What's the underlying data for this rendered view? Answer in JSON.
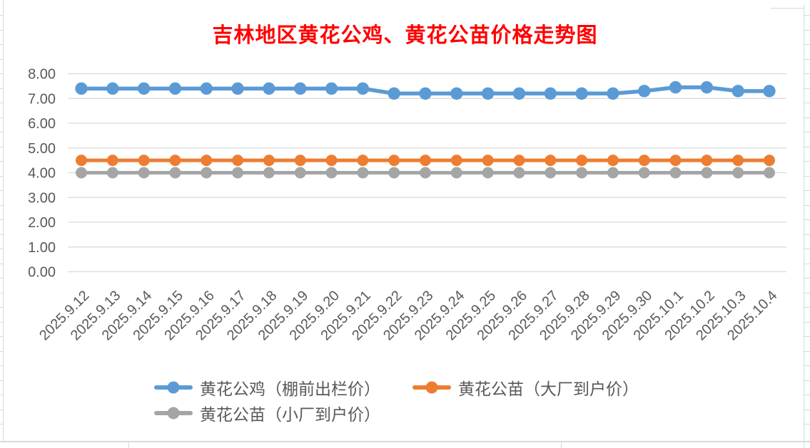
{
  "chart_data": {
    "type": "line",
    "title": "吉林地区黄花公鸡、黄花公苗价格走势图",
    "title_color": "#FF0000",
    "categories": [
      "2025.9.12",
      "2025.9.13",
      "2025.9.14",
      "2025.9.15",
      "2025.9.16",
      "2025.9.17",
      "2025.9.18",
      "2025.9.19",
      "2025.9.20",
      "2025.9.21",
      "2025.9.22",
      "2025.9.23",
      "2025.9.24",
      "2025.9.25",
      "2025.9.26",
      "2025.9.27",
      "2025.9.28",
      "2025.9.29",
      "2025.9.30",
      "2025.10.1",
      "2025.10.2",
      "2025.10.3",
      "2025.10.4"
    ],
    "series": [
      {
        "name": "黄花公鸡（棚前出栏价）",
        "color": "#5B9BD5",
        "values": [
          7.4,
          7.4,
          7.4,
          7.4,
          7.4,
          7.4,
          7.4,
          7.4,
          7.4,
          7.4,
          7.2,
          7.2,
          7.2,
          7.2,
          7.2,
          7.2,
          7.2,
          7.2,
          7.3,
          7.45,
          7.45,
          7.3,
          7.3
        ]
      },
      {
        "name": "黄花公苗（大厂到户价）",
        "color": "#ED7D31",
        "values": [
          4.5,
          4.5,
          4.5,
          4.5,
          4.5,
          4.5,
          4.5,
          4.5,
          4.5,
          4.5,
          4.5,
          4.5,
          4.5,
          4.5,
          4.5,
          4.5,
          4.5,
          4.5,
          4.5,
          4.5,
          4.5,
          4.5,
          4.5
        ]
      },
      {
        "name": "黄花公苗（小厂到户价）",
        "color": "#A5A5A5",
        "values": [
          4.0,
          4.0,
          4.0,
          4.0,
          4.0,
          4.0,
          4.0,
          4.0,
          4.0,
          4.0,
          4.0,
          4.0,
          4.0,
          4.0,
          4.0,
          4.0,
          4.0,
          4.0,
          4.0,
          4.0,
          4.0,
          4.0,
          4.0
        ]
      }
    ],
    "xlabel": "",
    "ylabel": "",
    "ylim": [
      0,
      8
    ],
    "ytick_step": 1,
    "ytick_decimals": 2,
    "grid": "horizontal",
    "gridline_color": "#D9D9D9",
    "axis_label_color": "#595959",
    "legend_position": "bottom"
  }
}
